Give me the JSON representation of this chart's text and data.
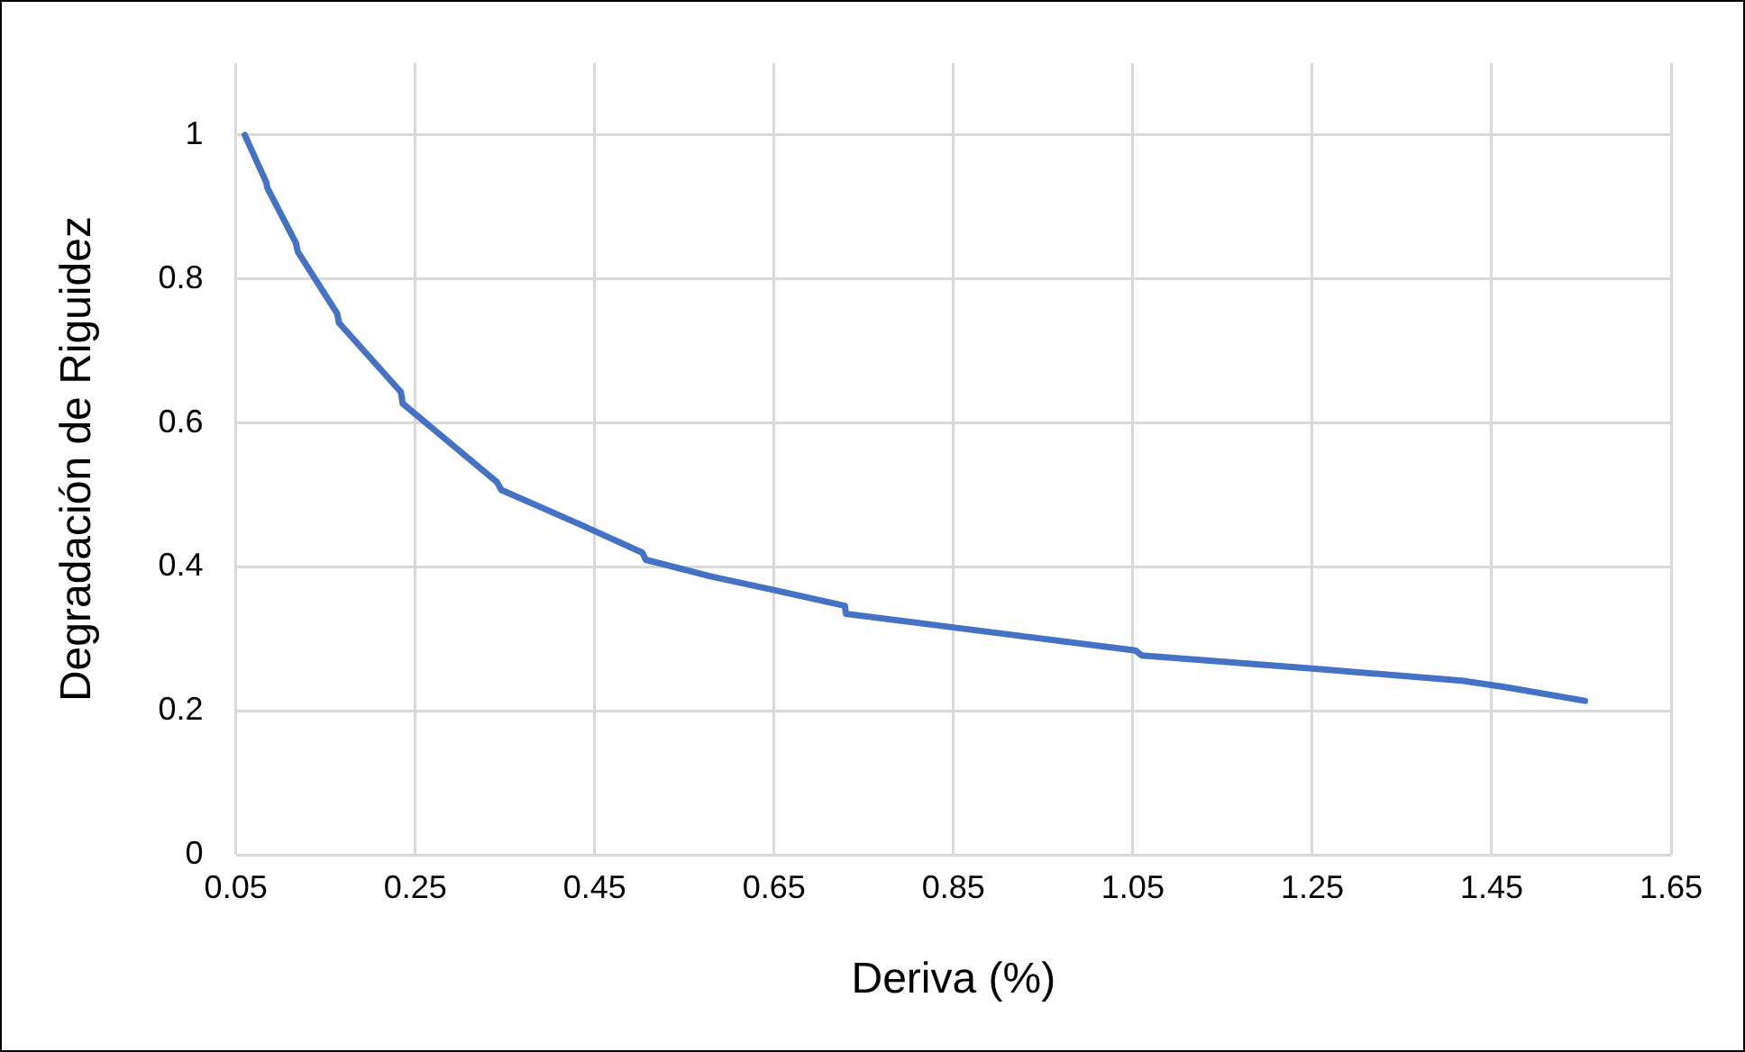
{
  "chart_data": {
    "type": "line",
    "xlabel": "Deriva (%)",
    "ylabel": "Degradación de Riguidez",
    "x": [
      0.06,
      0.084,
      0.085,
      0.117,
      0.119,
      0.163,
      0.165,
      0.234,
      0.236,
      0.341,
      0.346,
      0.434,
      0.503,
      0.507,
      0.579,
      0.65,
      0.729,
      0.73,
      0.85,
      1.053,
      1.06,
      1.25,
      1.417,
      1.466,
      1.554
    ],
    "series": [
      {
        "color": "#4472c4",
        "values": [
          1.0,
          0.934,
          0.927,
          0.85,
          0.838,
          0.752,
          0.739,
          0.643,
          0.627,
          0.518,
          0.507,
          0.459,
          0.42,
          0.41,
          0.387,
          0.368,
          0.346,
          0.335,
          0.316,
          0.284,
          0.277,
          0.259,
          0.242,
          0.233,
          0.214
        ]
      }
    ],
    "xlim": [
      0.05,
      1.65
    ],
    "xticks": [
      0.05,
      0.25,
      0.45,
      0.65,
      0.85,
      1.05,
      1.25,
      1.45,
      1.65
    ],
    "ylim": [
      0,
      1.1
    ],
    "yticks": [
      0,
      0.2,
      0.4,
      0.6,
      0.8,
      1
    ],
    "grid": true,
    "legend": false,
    "marker": "none",
    "line_style": "solid"
  }
}
